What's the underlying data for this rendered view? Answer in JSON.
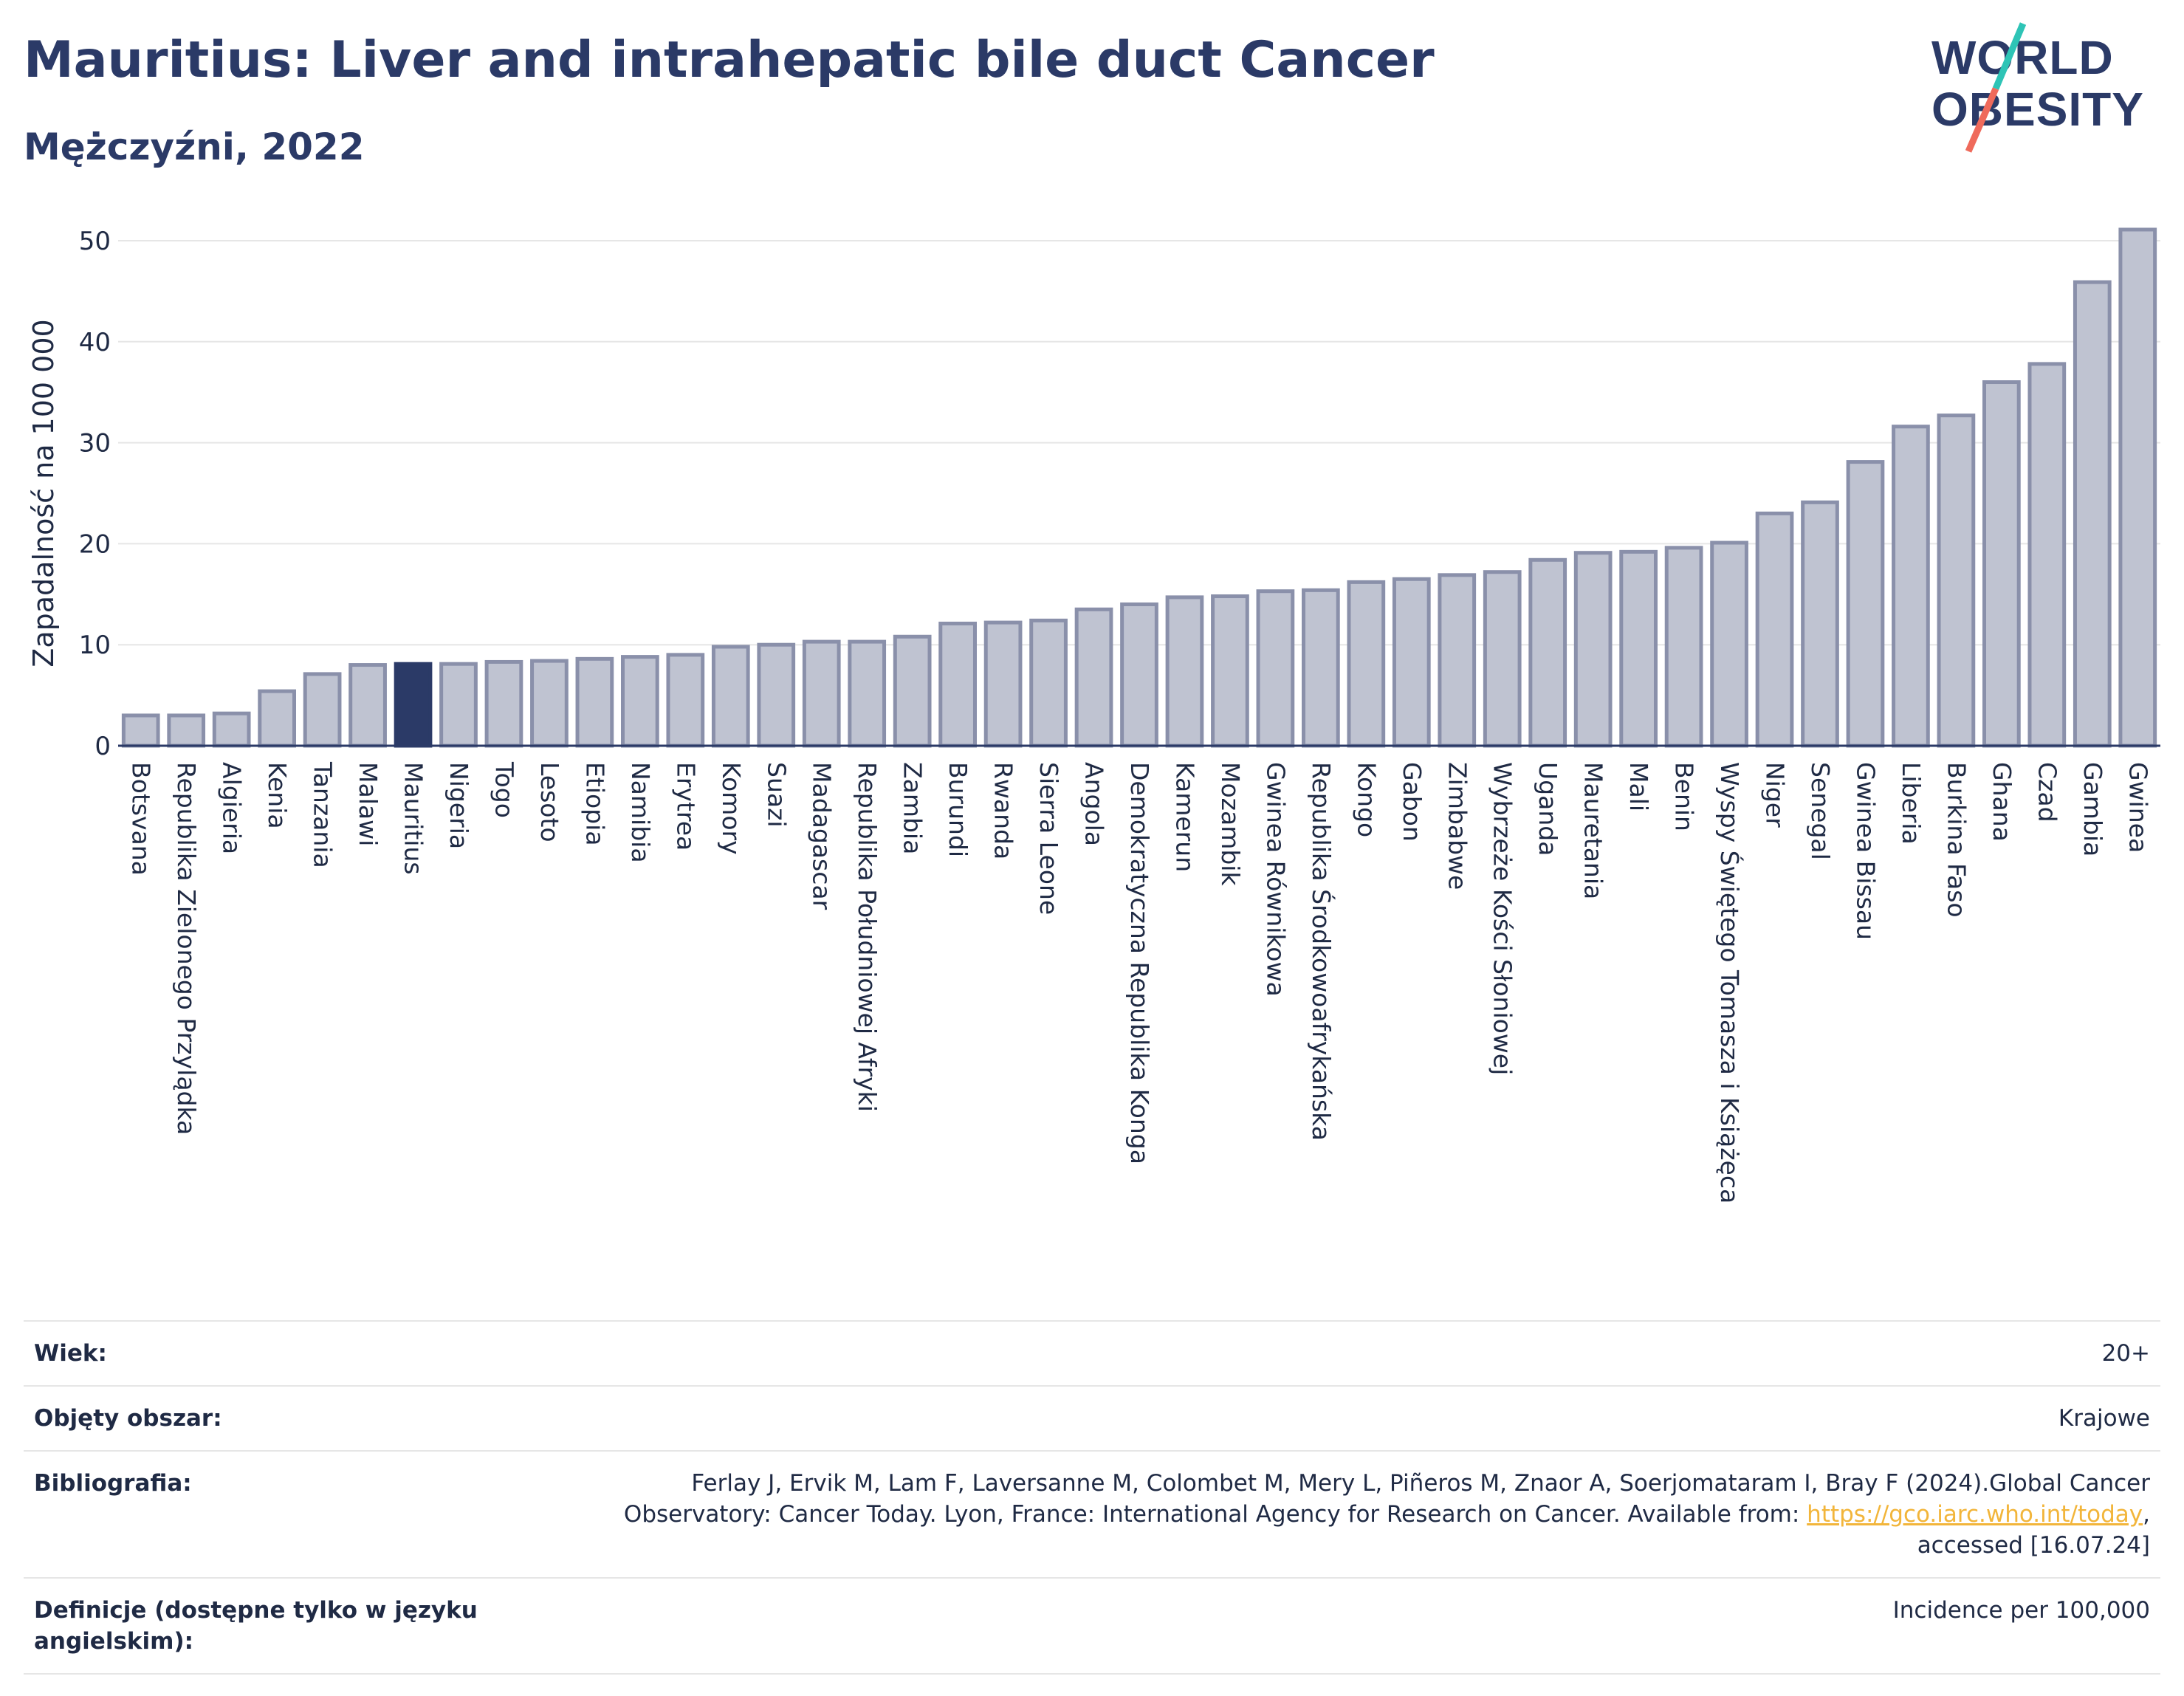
{
  "title": "Mauritius: Liver and intrahepatic bile duct Cancer",
  "subtitle": "Mężczyźni, 2022",
  "logo": {
    "line1": "WORLD",
    "line2": "OBESITY",
    "colors": {
      "text": "#2b3a67",
      "slash_top": "#2ec4b6",
      "slash_bottom": "#ef6a5b"
    }
  },
  "colors": {
    "bar": "#bfc3d1",
    "bar_stroke": "#8a90aa",
    "highlight": "#2b3a67",
    "grid": "#e6e6e6",
    "axis": "#2b3a67"
  },
  "chart_data": {
    "type": "bar",
    "ylabel": "Zapadalność na 100 000",
    "ylim": [
      0,
      52
    ],
    "yticks": [
      0,
      10,
      20,
      30,
      40,
      50
    ],
    "grid": true,
    "highlight": "Mauritius",
    "categories": [
      "Botsvana",
      "Republika Zielonego Przylądka",
      "Algieria",
      "Kenia",
      "Tanzania",
      "Malawi",
      "Mauritius",
      "Nigeria",
      "Togo",
      "Lesoto",
      "Etiopia",
      "Namibia",
      "Erytrea",
      "Komory",
      "Suazi",
      "Madagascar",
      "Republika Południowej Afryki",
      "Zambia",
      "Burundi",
      "Rwanda",
      "Sierra Leone",
      "Angola",
      "Demokratyczna Republika Konga",
      "Kamerun",
      "Mozambik",
      "Gwinea Równikowa",
      "Republika Środkowoafrykańska",
      "Kongo",
      "Gabon",
      "Zimbabwe",
      "Wybrzeże Kości Słoniowej",
      "Uganda",
      "Mauretania",
      "Mali",
      "Benin",
      "Wyspy Świętego Tomasza i Książęca",
      "Niger",
      "Senegal",
      "Gwinea Bissau",
      "Liberia",
      "Burkina Faso",
      "Ghana",
      "Czad",
      "Gambia",
      "Gwinea"
    ],
    "values": [
      3.0,
      3.0,
      3.2,
      5.4,
      7.1,
      8.0,
      8.1,
      8.1,
      8.3,
      8.4,
      8.6,
      8.8,
      9.0,
      9.8,
      10.0,
      10.3,
      10.3,
      10.8,
      12.1,
      12.2,
      12.4,
      13.5,
      14.0,
      14.7,
      14.8,
      15.3,
      15.4,
      16.2,
      16.5,
      16.9,
      17.2,
      18.4,
      19.1,
      19.2,
      19.6,
      20.1,
      23.0,
      24.1,
      28.1,
      31.6,
      32.7,
      36.0,
      37.8,
      45.9,
      51.1
    ]
  },
  "meta": [
    {
      "label": "Wiek:",
      "value": "20+"
    },
    {
      "label": "Objęty obszar:",
      "value": "Krajowe"
    },
    {
      "label": "Bibliografia:",
      "value": "Ferlay J, Ervik M, Lam F, Laversanne M, Colombet M, Mery L, Piñeros M, Znaor A, Soerjomataram I, Bray F (2024).Global Cancer Observatory: Cancer Today. Lyon, France: International Agency for Research on Cancer. Available from: ",
      "link": "https://gco.iarc.who.int/today",
      "after": ", accessed [16.07.24]"
    },
    {
      "label": "Definicje (dostępne tylko w języku angielskim):",
      "value": "Incidence per 100,000"
    }
  ]
}
